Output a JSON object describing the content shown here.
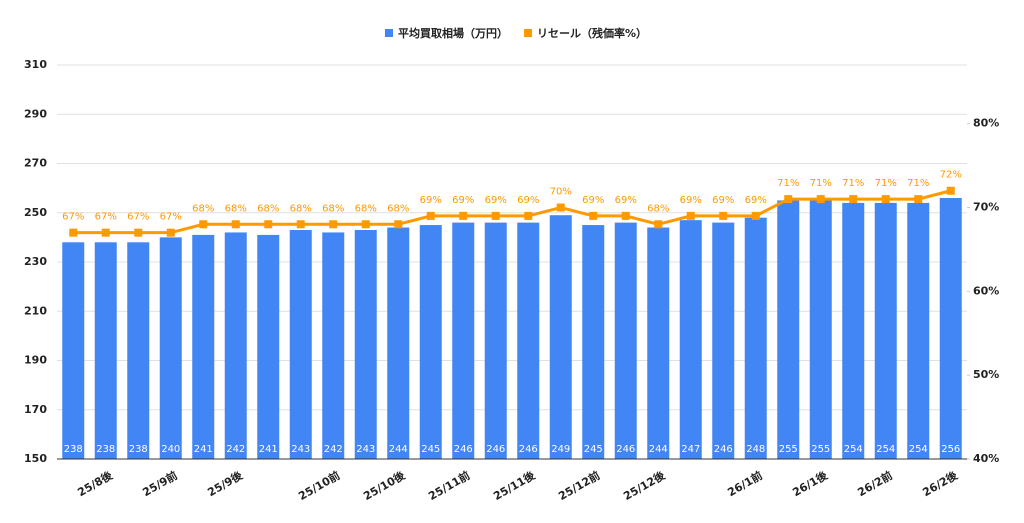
{
  "chart_data": {
    "type": "bar-line",
    "categories": [
      null,
      "25/8後",
      null,
      "25/9前",
      null,
      "25/9後",
      null,
      null,
      "25/10前",
      null,
      "25/10後",
      null,
      "25/11前",
      null,
      "25/11後",
      null,
      "25/12前",
      null,
      "25/12後",
      null,
      null,
      "26/1前",
      null,
      "26/1後",
      null,
      "26/2前",
      null,
      "26/2後"
    ],
    "series": [
      {
        "name": "平均買取相場（万円）",
        "color": "#4285f4",
        "type": "bar",
        "values": [
          238,
          238,
          238,
          240,
          241,
          242,
          241,
          243,
          242,
          243,
          244,
          245,
          246,
          246,
          246,
          249,
          245,
          246,
          244,
          247,
          246,
          248,
          255,
          255,
          254,
          254,
          254,
          256
        ]
      },
      {
        "name": "リセール（残価率%）",
        "color": "#ff9900",
        "type": "line",
        "axis": "y2",
        "values": [
          67,
          67,
          67,
          67,
          68,
          68,
          68,
          68,
          68,
          68,
          68,
          69,
          69,
          69,
          69,
          70,
          69,
          69,
          68,
          69,
          69,
          69,
          71,
          71,
          71,
          71,
          71,
          72
        ],
        "value_labels": [
          "67%",
          "67%",
          "67%",
          "67%",
          "68%",
          "68%",
          "68%",
          "68%",
          "68%",
          "68%",
          "68%",
          "69%",
          "69%",
          "69%",
          "69%",
          "70%",
          "69%",
          "69%",
          "68%",
          "69%",
          "69%",
          "69%",
          "71%",
          "71%",
          "71%",
          "71%",
          "71%",
          "72%"
        ]
      }
    ],
    "ylim": [
      150,
      310
    ],
    "yticks": [
      150,
      170,
      190,
      210,
      230,
      250,
      270,
      290,
      310
    ],
    "y2lim": [
      40,
      87
    ],
    "y2ticks": [
      {
        "value": 40,
        "label": "40%"
      },
      {
        "value": 50,
        "label": "50%"
      },
      {
        "value": 60,
        "label": "60%"
      },
      {
        "value": 70,
        "label": "70%"
      },
      {
        "value": 80,
        "label": "80%"
      }
    ],
    "grid": true,
    "legend": "top"
  }
}
